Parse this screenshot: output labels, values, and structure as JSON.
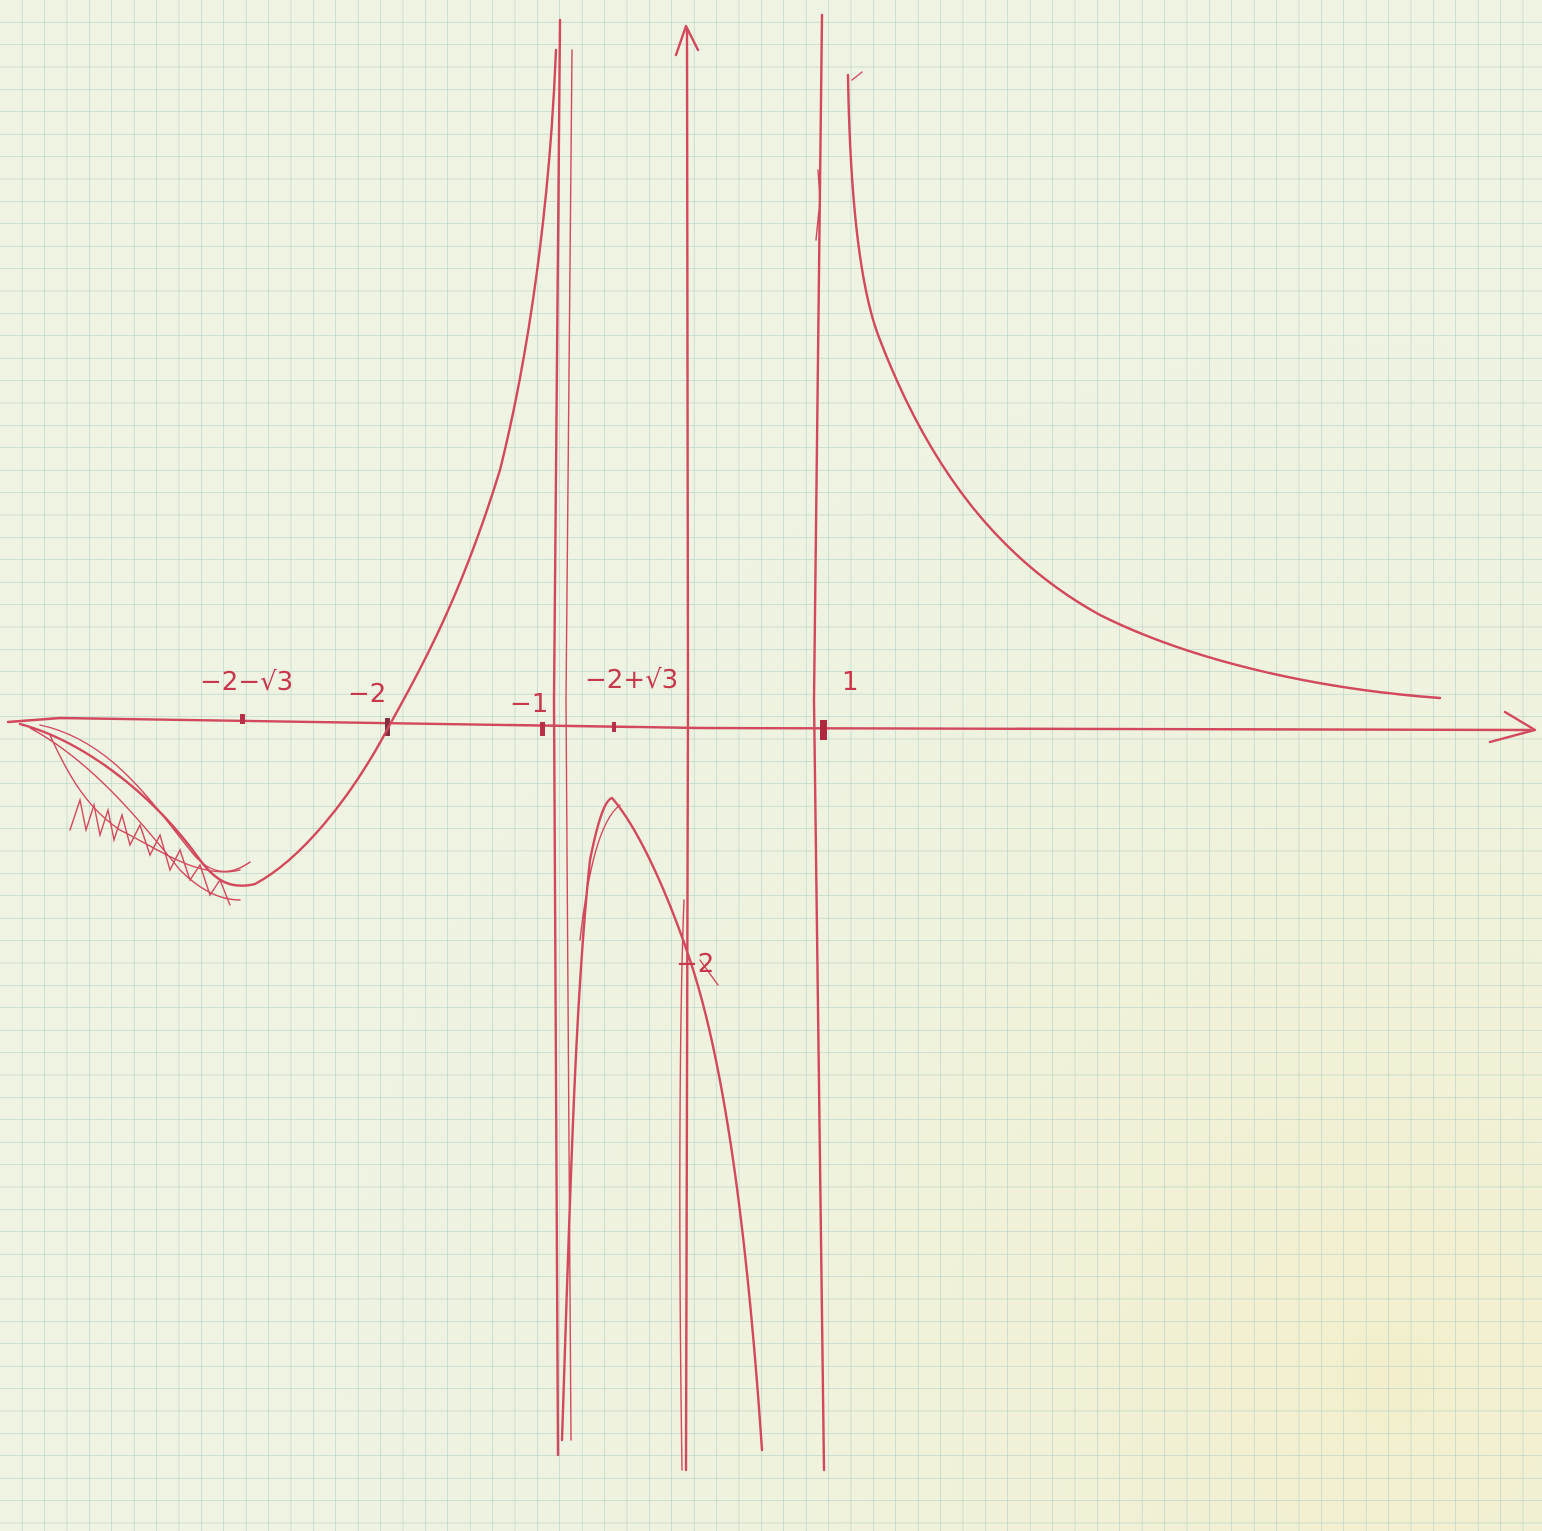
{
  "labels": [
    "−2−√3",
    "−2",
    "−1",
    "−2+√3",
    "1",
    "−2"
  ]
}
